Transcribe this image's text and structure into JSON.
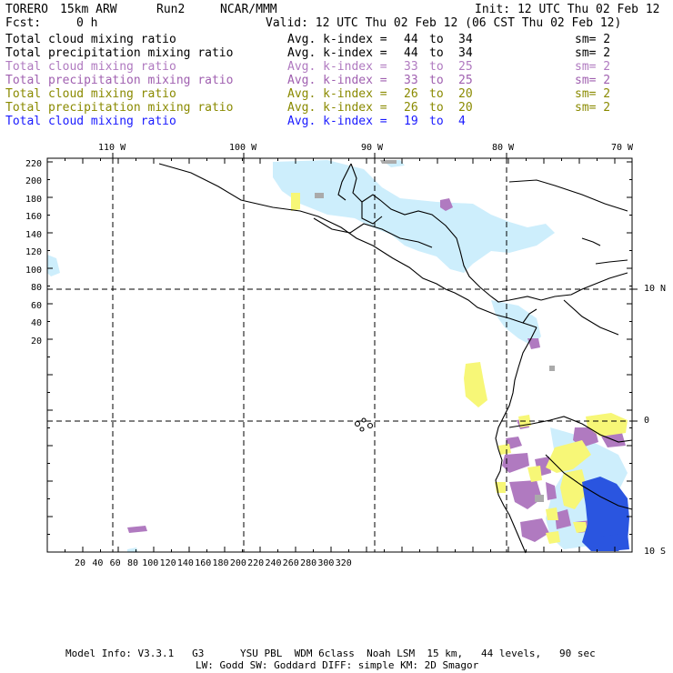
{
  "header": {
    "model_name": "TORERO",
    "resolution": "15km ARW",
    "run": "Run2",
    "org": "NCAR/MMM",
    "init": "Init: 12 UTC Thu 02 Feb 12",
    "fcst_label": "Fcst:",
    "fcst_value": "0 h",
    "valid": "Valid: 12 UTC Thu 02 Feb 12 (06 CST Thu 02 Feb 12)"
  },
  "legend": [
    {
      "field": "Total cloud mixing ratio",
      "kindex": "Avg. k-index =",
      "k_from": "44",
      "to": "to",
      "k_to": "34",
      "sm": "sm= 2",
      "color": "#000000"
    },
    {
      "field": "Total precipitation mixing ratio",
      "kindex": "Avg. k-index =",
      "k_from": "44",
      "to": "to",
      "k_to": "34",
      "sm": "sm= 2",
      "color": "#000000"
    },
    {
      "field": "Total cloud mixing ratio",
      "kindex": "Avg. k-index =",
      "k_from": "33",
      "to": "to",
      "k_to": "25",
      "sm": "sm= 2",
      "color": "#b07ac0"
    },
    {
      "field": "Total precipitation mixing ratio",
      "kindex": "Avg. k-index =",
      "k_from": "33",
      "to": "to",
      "k_to": "25",
      "sm": "sm= 2",
      "color": "#a060b0"
    },
    {
      "field": "Total cloud mixing ratio",
      "kindex": "Avg. k-index =",
      "k_from": "26",
      "to": "to",
      "k_to": "20",
      "sm": "sm= 2",
      "color": "#8a8a00"
    },
    {
      "field": "Total precipitation mixing ratio",
      "kindex": "Avg. k-index =",
      "k_from": "26",
      "to": "to",
      "k_to": "20",
      "sm": "sm= 2",
      "color": "#8a8a00"
    },
    {
      "field": "Total cloud mixing ratio",
      "kindex": "Avg. k-index =",
      "k_from": "19",
      "to": "to",
      "k_to": "4",
      "sm": "",
      "color": "#1a1aff"
    }
  ],
  "map": {
    "lon_labels": [
      "110 W",
      "100 W",
      "90 W",
      "80 W",
      "70 W"
    ],
    "lat_labels": [
      "10 N",
      "0",
      "10 S"
    ],
    "y_ticks": [
      "220",
      "200",
      "180",
      "160",
      "140",
      "120",
      "100",
      "80",
      "60",
      "40",
      "20"
    ],
    "x_ticks": [
      "20",
      "40",
      "60",
      "80",
      "100",
      "120",
      "140",
      "160",
      "180",
      "200",
      "220",
      "240",
      "260",
      "280",
      "300",
      "320"
    ]
  },
  "footer": {
    "line1": "Model Info: V3.3.1   G3      YSU PBL  WDM 6class  Noah LSM  15 km,   44 levels,   90 sec",
    "line2": "LW: Godd SW: Goddard DIFF: simple KM: 2D Smagor"
  },
  "colors": {
    "light_blue": "#cdeefc",
    "purple": "#b07ac0",
    "yellow": "#f7f777",
    "blue": "#2a55e0",
    "grey": "#aaaaaa"
  }
}
